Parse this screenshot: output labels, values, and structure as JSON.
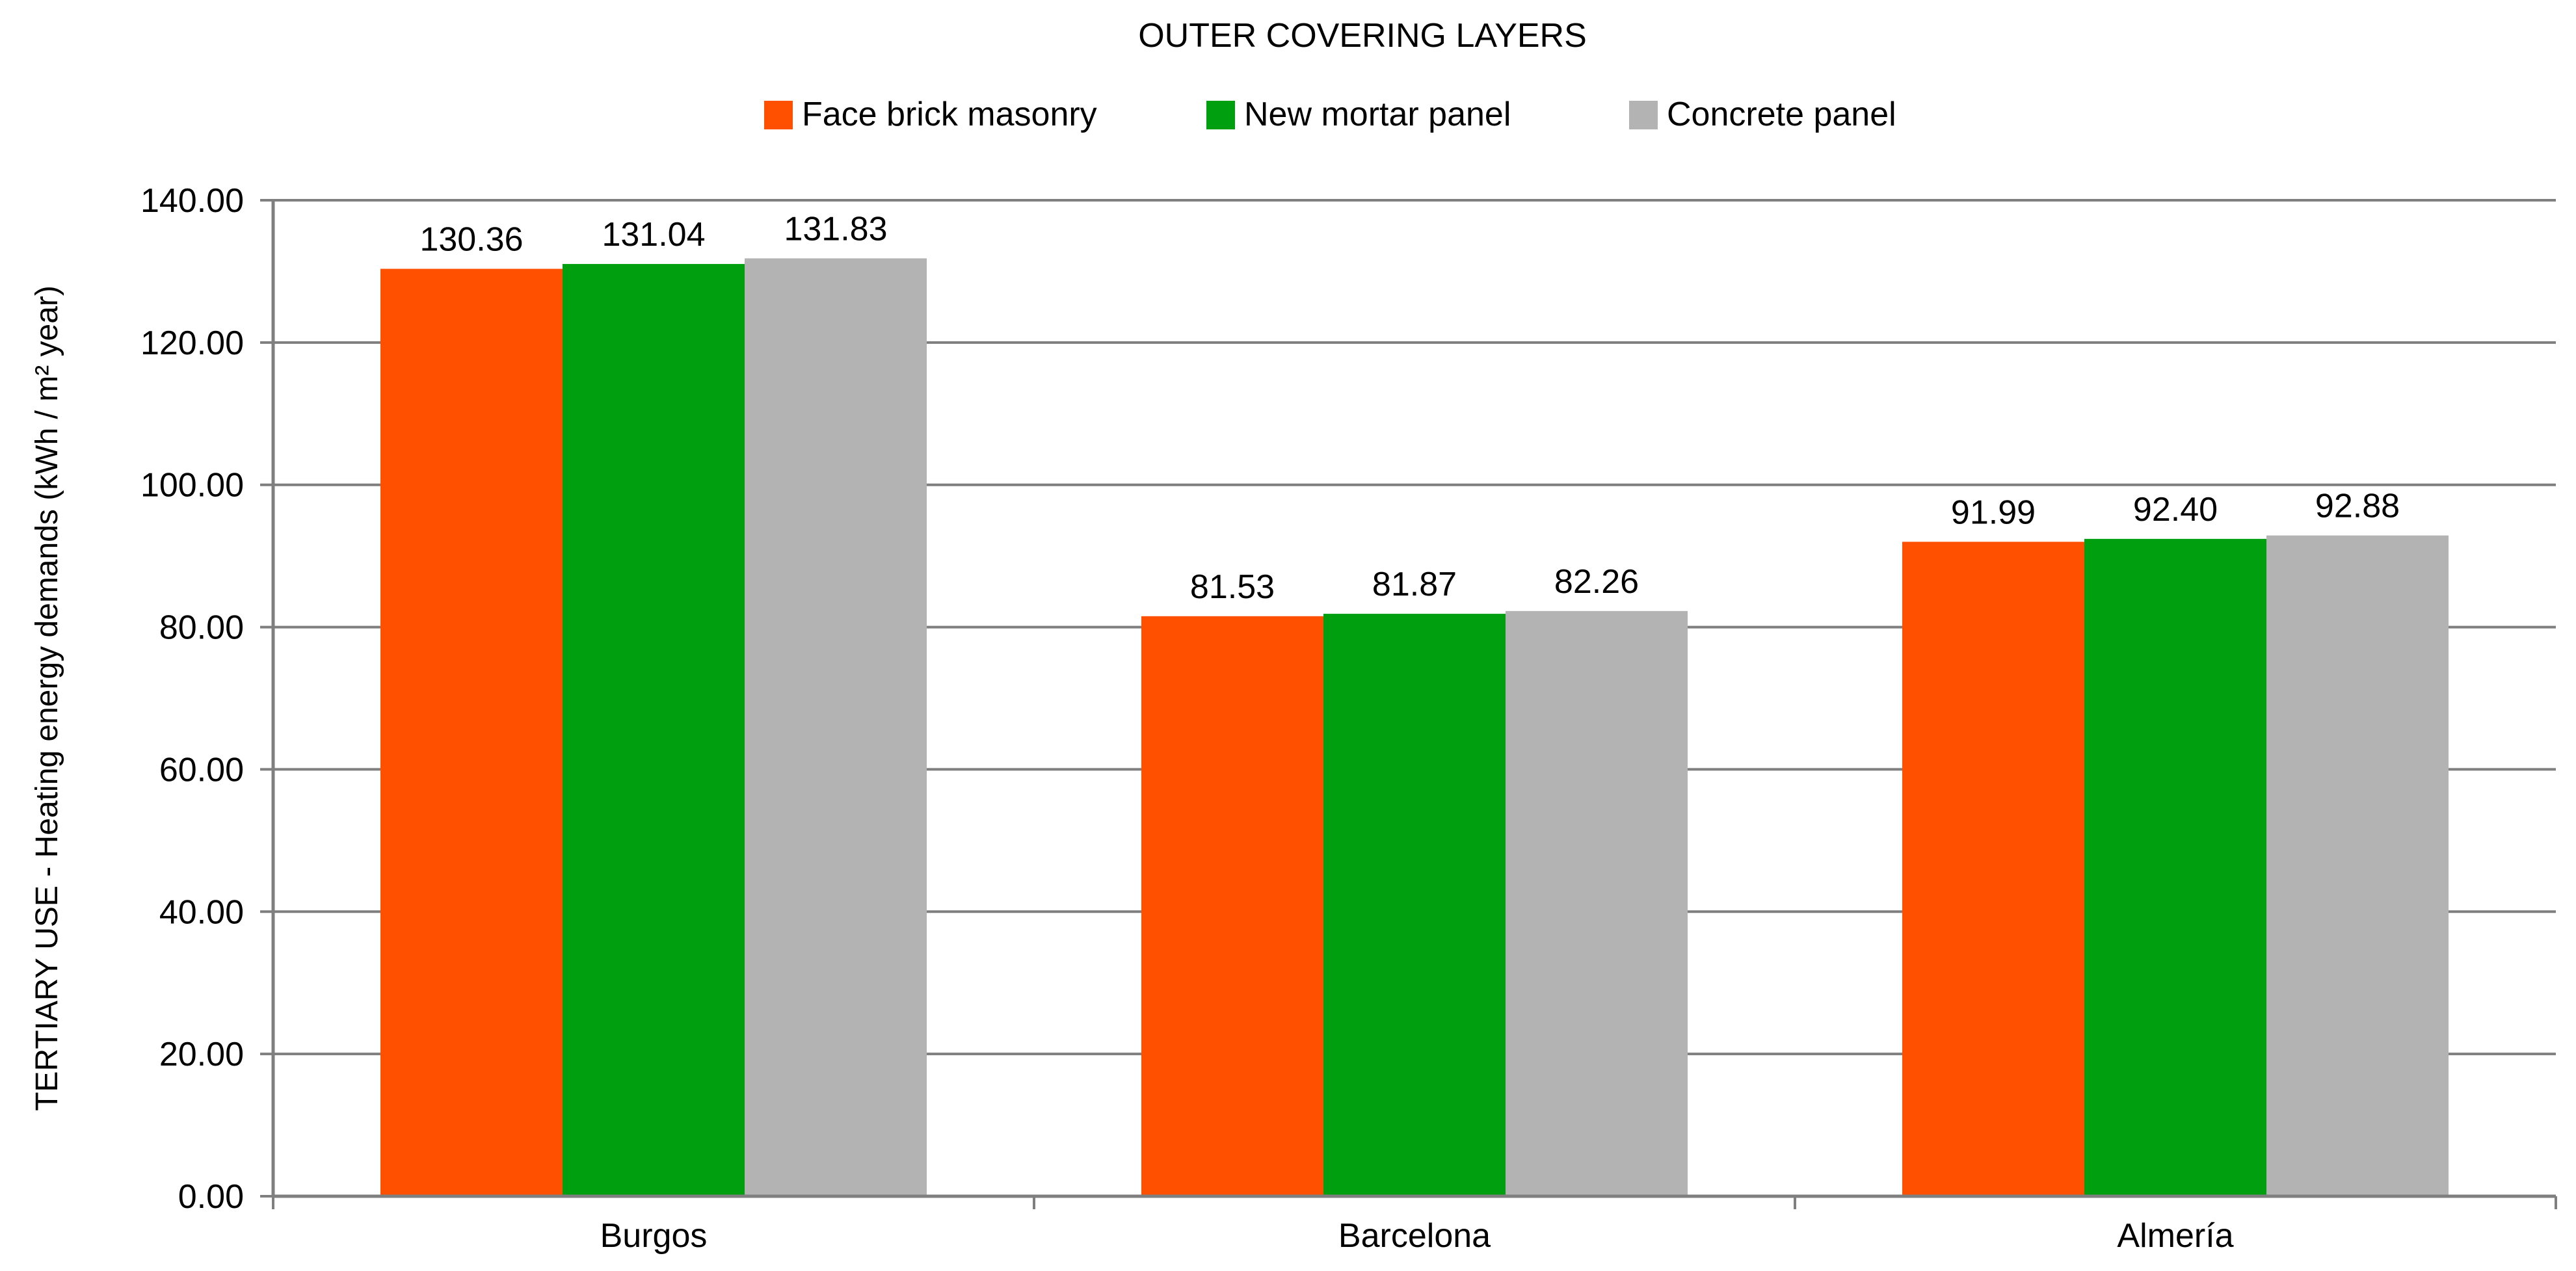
{
  "chart_data": {
    "type": "bar",
    "title": "OUTER COVERING LAYERS",
    "ylabel": "TERTIARY USE - Heating energy demands (kWh / m² year)",
    "xlabel": "",
    "categories": [
      "Burgos",
      "Barcelona",
      "Almería"
    ],
    "series": [
      {
        "name": "Face brick masonry",
        "color": "#FF5000",
        "values": [
          130.36,
          81.53,
          91.99
        ],
        "labels": [
          "130.36",
          "81.53",
          "91.99"
        ]
      },
      {
        "name": "New mortar panel",
        "color": "#009F10",
        "values": [
          131.04,
          81.87,
          92.4
        ],
        "labels": [
          "131.04",
          "81.87",
          "92.40"
        ]
      },
      {
        "name": "Concrete panel",
        "color": "#B3B3B3",
        "values": [
          131.83,
          82.26,
          92.88
        ],
        "labels": [
          "131.83",
          "82.26",
          "92.88"
        ]
      }
    ],
    "ylim": [
      0,
      140
    ],
    "yticks": [
      0,
      20,
      40,
      60,
      80,
      100,
      120,
      140
    ],
    "ytick_labels": [
      "0.00",
      "20.00",
      "40.00",
      "60.00",
      "80.00",
      "100.00",
      "120.00",
      "140.00"
    ],
    "grid": true,
    "legend_position": "top-center"
  }
}
